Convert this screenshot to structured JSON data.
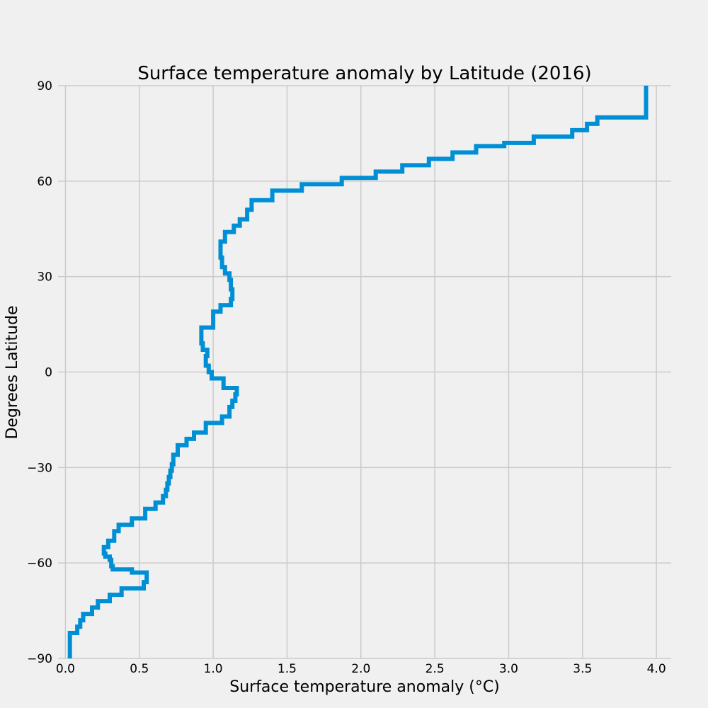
{
  "chart_data": {
    "type": "line",
    "title": "Surface temperature anomaly by Latitude (2016)",
    "xlabel": "Surface temperature anomaly (°C)",
    "ylabel": "Degrees Latitude",
    "xlim": [
      -0.05,
      4.1
    ],
    "ylim": [
      -90,
      90
    ],
    "x_ticks": [
      0.0,
      0.5,
      1.0,
      1.5,
      2.0,
      2.5,
      3.0,
      3.5,
      4.0
    ],
    "x_tick_labels": [
      "0.0",
      "0.5",
      "1.0",
      "1.5",
      "2.0",
      "2.5",
      "3.0",
      "3.5",
      "4.0"
    ],
    "y_ticks": [
      -90,
      -60,
      -30,
      0,
      30,
      60,
      90
    ],
    "y_tick_labels": [
      "−90",
      "−60",
      "−30",
      "0",
      "30",
      "60",
      "90"
    ],
    "grid": true,
    "legend": "none",
    "line_style": "steps",
    "colors": {
      "series": "#008fd5",
      "background": "#f0f0f0",
      "grid": "#cbcbcb"
    },
    "series": [
      {
        "x": [
          0.03,
          0.03,
          0.08,
          0.1,
          0.12,
          0.18,
          0.22,
          0.3,
          0.38,
          0.53,
          0.55,
          0.55,
          0.45,
          0.32,
          0.31,
          0.3,
          0.27,
          0.26,
          0.29,
          0.33,
          0.36,
          0.45,
          0.54,
          0.61,
          0.66,
          0.68,
          0.69,
          0.7,
          0.71,
          0.72,
          0.73,
          0.76,
          0.82,
          0.87,
          0.95,
          1.06,
          1.11,
          1.13,
          1.15,
          1.16,
          1.07,
          0.99,
          0.97,
          0.95,
          0.96,
          0.93,
          0.92,
          1.0,
          1.05,
          1.12,
          1.13,
          1.12,
          1.11,
          1.08,
          1.06,
          1.05,
          1.08,
          1.14,
          1.18,
          1.23,
          1.26,
          1.4,
          1.6,
          1.87,
          2.1,
          2.28,
          2.46,
          2.62,
          2.78,
          2.97,
          3.17,
          3.43,
          3.53,
          3.6,
          3.93,
          3.93
        ],
        "y": [
          -90,
          -82,
          -80,
          -78,
          -76,
          -74,
          -72,
          -70,
          -68,
          -66,
          -65,
          -63,
          -62,
          -61,
          -59,
          -58,
          -57,
          -55,
          -53,
          -50,
          -48,
          -46,
          -43,
          -41,
          -39,
          -37,
          -35,
          -33,
          -31,
          -29,
          -26,
          -23,
          -21,
          -19,
          -16,
          -14,
          -11,
          -9,
          -7,
          -5,
          -2,
          0,
          2,
          5,
          7,
          9,
          14,
          19,
          21,
          23,
          26,
          29,
          31,
          33,
          36,
          41,
          44,
          46,
          48,
          51,
          54,
          57,
          59,
          61,
          63,
          65,
          67,
          69,
          71,
          72,
          74,
          76,
          78,
          80,
          82,
          90
        ]
      }
    ]
  }
}
